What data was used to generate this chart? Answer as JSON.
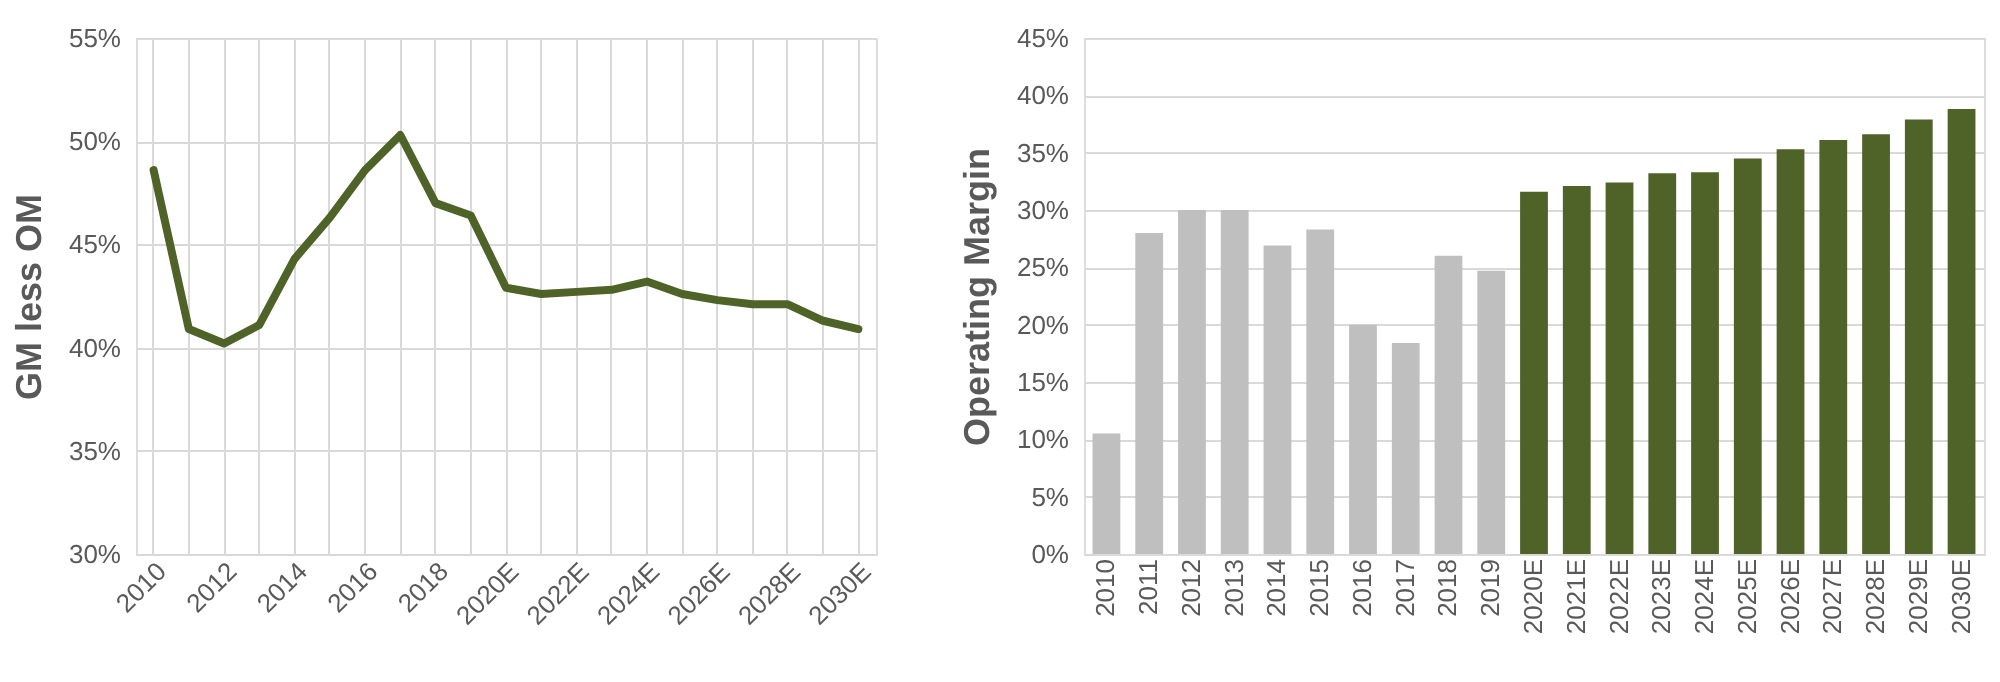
{
  "chart_data": [
    {
      "type": "line",
      "ylabel": "GM less OM",
      "categories": [
        "2010",
        null,
        "2012",
        null,
        "2014",
        null,
        "2016",
        null,
        "2018",
        null,
        "2020E",
        null,
        "2022E",
        null,
        "2024E",
        null,
        "2026E",
        null,
        "2028E",
        null,
        "2030E"
      ],
      "series": [
        {
          "color": "#4f6228",
          "values": [
            48.6,
            40.9,
            40.2,
            41.1,
            44.3,
            46.3,
            48.6,
            50.3,
            47.0,
            46.4,
            42.9,
            42.6,
            42.7,
            42.8,
            43.2,
            42.6,
            42.3,
            42.1,
            42.1,
            41.3,
            40.9
          ]
        }
      ],
      "ylim": [
        30,
        55
      ],
      "yticks": [
        {
          "value": 30,
          "label": "30%"
        },
        {
          "value": 35,
          "label": "35%"
        },
        {
          "value": 40,
          "label": "40%"
        },
        {
          "value": 45,
          "label": "45%"
        },
        {
          "value": 50,
          "label": "50%"
        },
        {
          "value": 55,
          "label": "55%"
        }
      ],
      "grid": true,
      "marker": "none",
      "line_style": "solid"
    },
    {
      "type": "bar",
      "ylabel": "Operating Margin",
      "categories": [
        "2010",
        "2011",
        "2012",
        "2013",
        "2014",
        "2015",
        "2016",
        "2017",
        "2018",
        "2019",
        "2020E",
        "2021E",
        "2022E",
        "2023E",
        "2024E",
        "2025E",
        "2026E",
        "2027E",
        "2028E",
        "2029E",
        "2030E"
      ],
      "values": [
        10.5,
        28.0,
        30.0,
        30.0,
        26.9,
        28.3,
        20.0,
        18.4,
        26.0,
        24.7,
        31.6,
        32.1,
        32.4,
        33.2,
        33.3,
        34.5,
        35.3,
        36.1,
        36.6,
        37.9,
        38.8
      ],
      "colors": [
        "#bfbfbf",
        "#bfbfbf",
        "#bfbfbf",
        "#bfbfbf",
        "#bfbfbf",
        "#bfbfbf",
        "#bfbfbf",
        "#bfbfbf",
        "#bfbfbf",
        "#bfbfbf",
        "#4f6228",
        "#4f6228",
        "#4f6228",
        "#4f6228",
        "#4f6228",
        "#4f6228",
        "#4f6228",
        "#4f6228",
        "#4f6228",
        "#4f6228",
        "#4f6228"
      ],
      "ylim": [
        0,
        45
      ],
      "yticks": [
        {
          "value": 0,
          "label": "0%"
        },
        {
          "value": 5,
          "label": "5%"
        },
        {
          "value": 10,
          "label": "10%"
        },
        {
          "value": 15,
          "label": "15%"
        },
        {
          "value": 20,
          "label": "20%"
        },
        {
          "value": 25,
          "label": "25%"
        },
        {
          "value": 30,
          "label": "30%"
        },
        {
          "value": 35,
          "label": "35%"
        },
        {
          "value": 40,
          "label": "40%"
        },
        {
          "value": 45,
          "label": "45%"
        }
      ],
      "grid": "y"
    }
  ]
}
